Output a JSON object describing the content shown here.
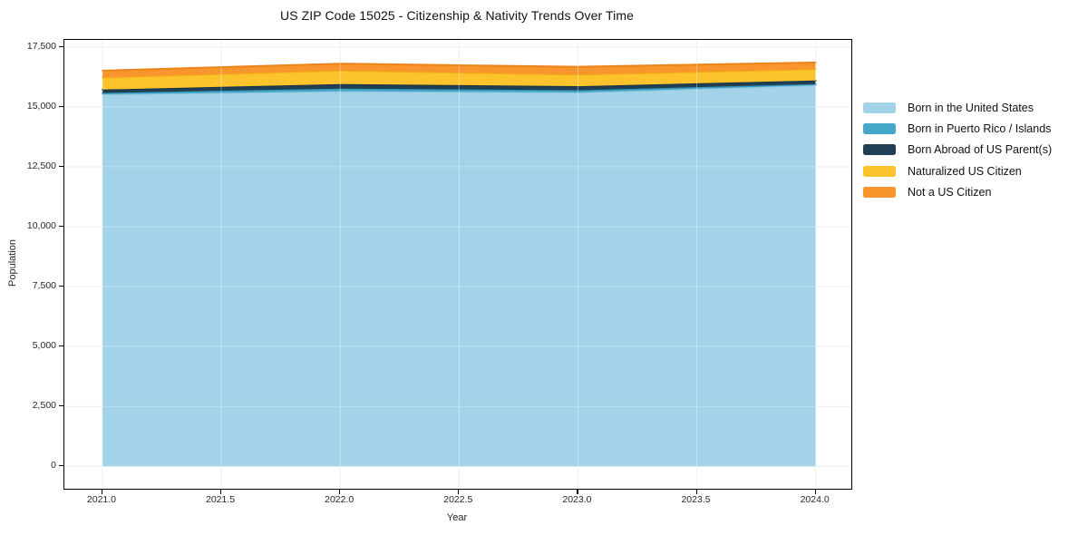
{
  "chart": {
    "title": "US ZIP Code 15025 - Citizenship & Nativity Trends Over Time",
    "xlabel": "Year",
    "ylabel": "Population"
  },
  "chart_data": {
    "type": "area",
    "stacked": true,
    "title": "US ZIP Code 15025 - Citizenship & Nativity Trends Over Time",
    "xlabel": "Year",
    "ylabel": "Population",
    "x": [
      2021,
      2022,
      2023,
      2024
    ],
    "series": [
      {
        "name": "Born in the United States",
        "values": [
          15520,
          15650,
          15600,
          15900
        ],
        "fill": "#a3d3e8",
        "stroke": "#8cc3dd"
      },
      {
        "name": "Born in Puerto Rico / Islands",
        "values": [
          60,
          110,
          90,
          50
        ],
        "fill": "#46a8c8",
        "stroke": "#3396b8"
      },
      {
        "name": "Born Abroad of US Parent(s)",
        "values": [
          140,
          190,
          170,
          150
        ],
        "fill": "#1f4054",
        "stroke": "#173247"
      },
      {
        "name": "Naturalized US Citizen",
        "values": [
          500,
          560,
          480,
          470
        ],
        "fill": "#fcc32d",
        "stroke": "#f2b113"
      },
      {
        "name": "Not a US Citizen",
        "values": [
          290,
          290,
          330,
          280
        ],
        "fill": "#f8952d",
        "stroke": "#ec8318"
      }
    ],
    "xlim": [
      2020.84,
      2024.15
    ],
    "ylim": [
      -934,
      17792
    ],
    "x_ticks": {
      "values": [
        2021.0,
        2021.5,
        2022.0,
        2022.5,
        2023.0,
        2023.5,
        2024.0
      ],
      "labels": [
        "2021.0",
        "2021.5",
        "2022.0",
        "2022.5",
        "2023.0",
        "2023.5",
        "2024.0"
      ]
    },
    "y_ticks": {
      "values": [
        0,
        2500,
        5000,
        7500,
        10000,
        12500,
        15000,
        17500
      ],
      "labels": [
        "0",
        "2,500",
        "5,000",
        "7,500",
        "10,000",
        "12,500",
        "15,000",
        "17,500"
      ]
    },
    "grid": true,
    "grid_color": "#e7e7e7",
    "legend_position": "right"
  },
  "colors": {
    "background": "#ffffff",
    "spine": "#000000",
    "text": "#262626"
  }
}
